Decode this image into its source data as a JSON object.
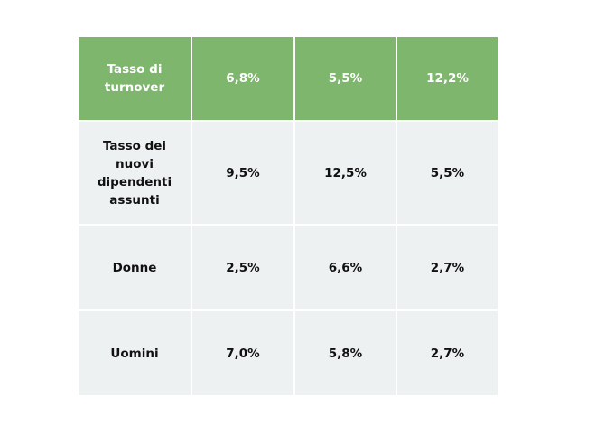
{
  "colors": {
    "header_bg": "#7db66c",
    "header_text": "#ffffff",
    "body_bg": "#eef1f2",
    "body_text": "#111111"
  },
  "table": {
    "rows": [
      {
        "label": "Tasso di turnover",
        "values": [
          "6,8%",
          "5,5%",
          "12,2%"
        ]
      },
      {
        "label": "Tasso dei nuovi dipendenti assunti",
        "values": [
          "9,5%",
          "12,5%",
          "5,5%"
        ]
      },
      {
        "label": "Donne",
        "values": [
          "2,5%",
          "6,6%",
          "2,7%"
        ]
      },
      {
        "label": "Uomini",
        "values": [
          "7,0%",
          "5,8%",
          "2,7%"
        ]
      }
    ]
  }
}
